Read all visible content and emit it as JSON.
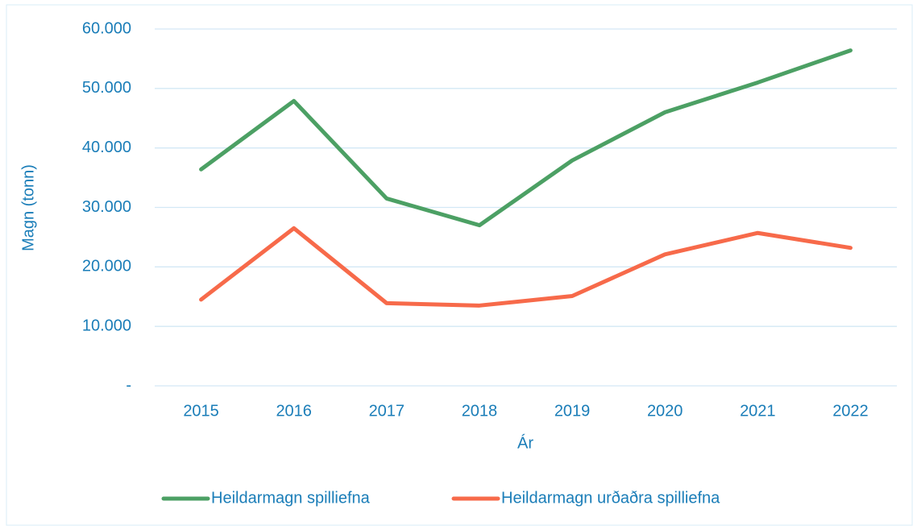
{
  "chart_data": {
    "type": "line",
    "x_label": "Ár",
    "y_label": "Magn (tonn)",
    "categories": [
      "2015",
      "2016",
      "2017",
      "2018",
      "2019",
      "2020",
      "2021",
      "2022"
    ],
    "series": [
      {
        "name": "Heildarmagn spilliefna",
        "color": "#4ca064",
        "values": [
          36400,
          47900,
          31500,
          27000,
          37900,
          46000,
          51000,
          56400
        ]
      },
      {
        "name": "Heildarmagn urðaðra spilliefna",
        "color": "#f76a4a",
        "values": [
          14500,
          26500,
          13900,
          13500,
          15100,
          22100,
          25700,
          23200
        ]
      }
    ],
    "ylim": [
      0,
      60000
    ],
    "yticks": [
      {
        "value": 0,
        "label": "-"
      },
      {
        "value": 10000,
        "label": "10.000"
      },
      {
        "value": 20000,
        "label": "20.000"
      },
      {
        "value": 30000,
        "label": "30.000"
      },
      {
        "value": 40000,
        "label": "40.000"
      },
      {
        "value": 50000,
        "label": "50.000"
      },
      {
        "value": 60000,
        "label": "60.000"
      }
    ],
    "grid": true,
    "legend": "bottom"
  }
}
